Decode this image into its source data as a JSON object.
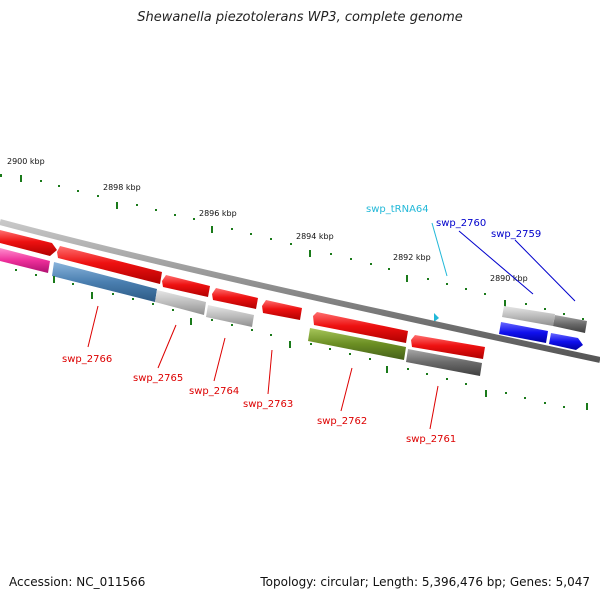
{
  "title": "Shewanella piezotolerans WP3, complete genome",
  "footer": {
    "accession": "Accession: NC_011566",
    "summary": "Topology: circular; Length: 5,396,476 bp; Genes: 5,047"
  },
  "ticks": [
    {
      "label": "2900 kbp"
    },
    {
      "label": "2898 kbp"
    },
    {
      "label": "2896 kbp"
    },
    {
      "label": "2894 kbp"
    },
    {
      "label": "2892 kbp"
    },
    {
      "label": "2890 kbp"
    }
  ],
  "gene_labels": [
    {
      "text": "swp_tRNA64",
      "color": "#22b8d8"
    },
    {
      "text": "swp_2760",
      "color": "#0000cc"
    },
    {
      "text": "swp_2759",
      "color": "#0000cc"
    },
    {
      "text": "swp_2766",
      "color": "#dd0000"
    },
    {
      "text": "swp_2765",
      "color": "#dd0000"
    },
    {
      "text": "swp_2764",
      "color": "#dd0000"
    },
    {
      "text": "swp_2763",
      "color": "#dd0000"
    },
    {
      "text": "swp_2762",
      "color": "#dd0000"
    },
    {
      "text": "swp_2761",
      "color": "#dd0000"
    }
  ],
  "colors": {
    "backbone": "#8a8a8a",
    "tick": "#1a7a1a",
    "cds_red": "#ee1111",
    "pink": "#ee2f9a",
    "steel_blue": "#4a7fb0",
    "light_gray": "#bdbdbd",
    "dark_gray": "#6a6a6a",
    "olive": "#6b8e23",
    "blue": "#1010ee",
    "cyan": "#22b8d8"
  }
}
